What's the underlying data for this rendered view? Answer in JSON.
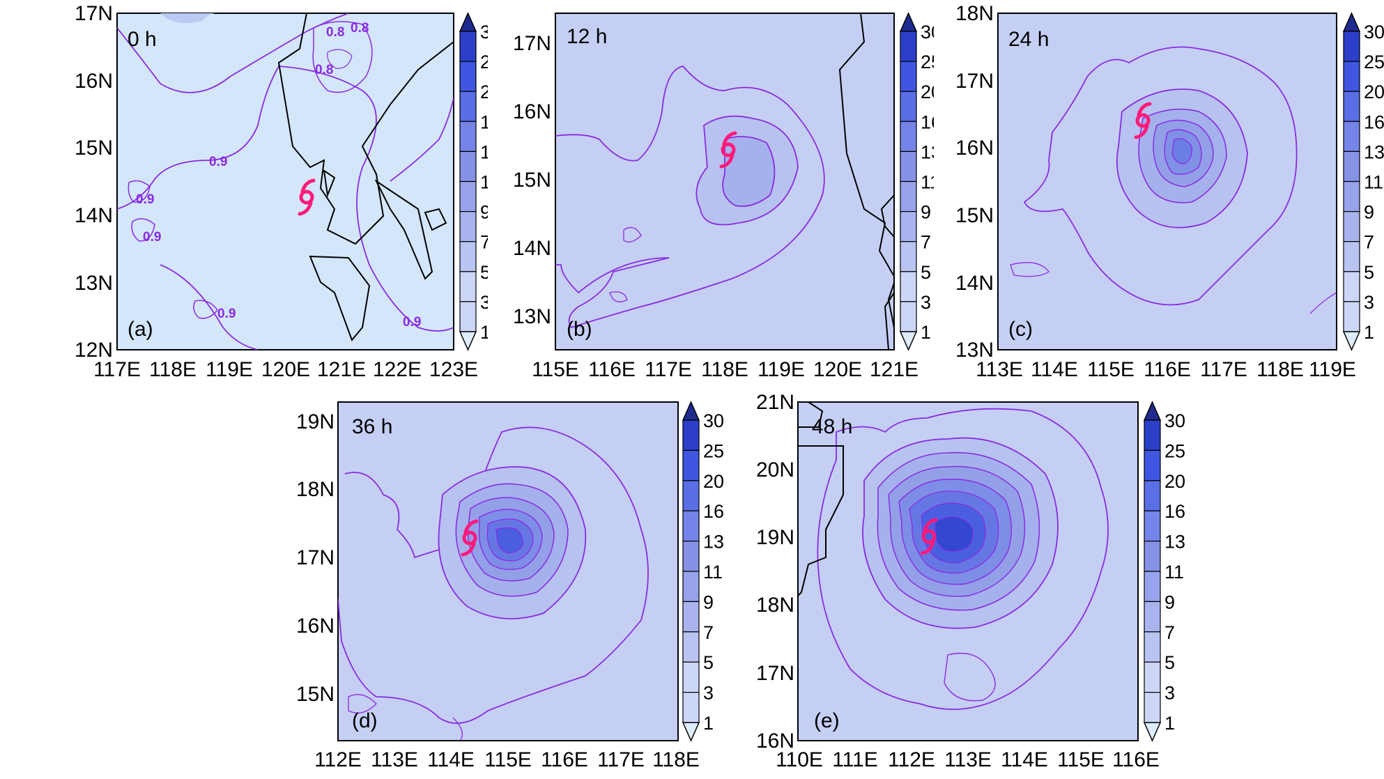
{
  "colorbar": {
    "levels": [
      "30",
      "25",
      "20",
      "16",
      "13",
      "11",
      "9",
      "7",
      "5",
      "3",
      "1"
    ],
    "colors": [
      "#1f2a8f",
      "#2b3fc9",
      "#3e56e0",
      "#5a6ee6",
      "#7484e8",
      "#8592e6",
      "#97a3ea",
      "#a9b4ef",
      "#bac4f3",
      "#ccd6f7",
      "#deedfb"
    ]
  },
  "colors": {
    "contour": "#8a2be2",
    "coast": "#000000",
    "typhoon": "#ff1a7a",
    "base_fill": "#c5cff4",
    "base_fill_a": "#d4e6fa"
  },
  "panels": [
    {
      "id": "a",
      "tag": "(a)",
      "time": "0 h",
      "x_ticks": [
        "117E",
        "118E",
        "119E",
        "120E",
        "121E",
        "122E",
        "123E"
      ],
      "y_ticks": [
        "17N",
        "16N",
        "15N",
        "14N",
        "13N",
        "12N"
      ],
      "contour_labels": [
        "0.8",
        "0.8",
        "0.8",
        "0.9",
        "0.9",
        "0.9",
        "0.9",
        "0.9"
      ],
      "typhoon_symbol": "typhoon-icon"
    },
    {
      "id": "b",
      "tag": "(b)",
      "time": "12 h",
      "x_ticks": [
        "115E",
        "116E",
        "117E",
        "118E",
        "119E",
        "120E",
        "121E"
      ],
      "y_ticks": [
        "17N",
        "16N",
        "15N",
        "14N",
        "13N"
      ],
      "typhoon_symbol": "typhoon-icon"
    },
    {
      "id": "c",
      "tag": "(c)",
      "time": "24 h",
      "x_ticks": [
        "113E",
        "114E",
        "115E",
        "116E",
        "117E",
        "118E",
        "119E"
      ],
      "y_ticks": [
        "18N",
        "17N",
        "16N",
        "15N",
        "14N",
        "13N"
      ],
      "typhoon_symbol": "typhoon-icon"
    },
    {
      "id": "d",
      "tag": "(d)",
      "time": "36 h",
      "x_ticks": [
        "112E",
        "113E",
        "114E",
        "115E",
        "116E",
        "117E",
        "118E"
      ],
      "y_ticks": [
        "19N",
        "18N",
        "17N",
        "16N",
        "15N"
      ],
      "typhoon_symbol": "typhoon-icon"
    },
    {
      "id": "e",
      "tag": "(e)",
      "time": "48 h",
      "x_ticks": [
        "110E",
        "111E",
        "112E",
        "113E",
        "114E",
        "115E",
        "116E"
      ],
      "y_ticks": [
        "21N",
        "20N",
        "19N",
        "18N",
        "17N",
        "16N"
      ],
      "typhoon_symbol": "typhoon-icon"
    }
  ]
}
